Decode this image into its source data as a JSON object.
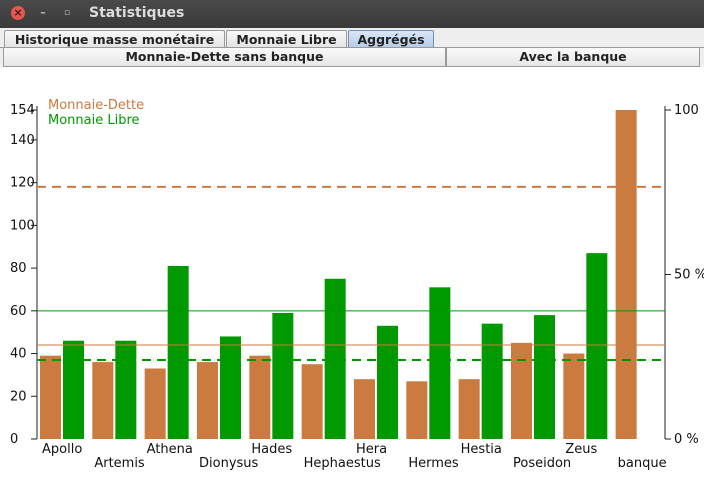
{
  "window": {
    "title": "Statistiques",
    "close_icon": "close-icon",
    "minimize_icon": "minimize-icon",
    "maximize_icon": "maximize-icon"
  },
  "tabs": [
    {
      "label": "Historique masse monétaire",
      "selected": false
    },
    {
      "label": "Monnaie Libre",
      "selected": false
    },
    {
      "label": "Aggrégés",
      "selected": true
    }
  ],
  "subtabs": [
    {
      "label": "Monnaie-Dette sans banque"
    },
    {
      "label": "Avec la banque"
    }
  ],
  "chart_data": {
    "type": "bar",
    "categories": [
      "Apollo",
      "Artemis",
      "Athena",
      "Dionysus",
      "Hades",
      "Hephaestus",
      "Hera",
      "Hermes",
      "Hestia",
      "Poseidon",
      "Zeus",
      "banque"
    ],
    "series": [
      {
        "name": "Monnaie-Dette",
        "color": "#cb7a40",
        "values": [
          39,
          36,
          33,
          36,
          39,
          35,
          28,
          27,
          28,
          45,
          40,
          154
        ]
      },
      {
        "name": "Monnaie Libre",
        "color": "#009900",
        "values": [
          46,
          46,
          81,
          48,
          59,
          75,
          53,
          71,
          54,
          58,
          87,
          null
        ]
      }
    ],
    "reference_lines": [
      {
        "series": "Monnaie-Dette",
        "style": "dashed",
        "value": 118,
        "color": "#cb7a40"
      },
      {
        "series": "Monnaie-Dette",
        "style": "solid",
        "value": 44,
        "color": "#cb7a40"
      },
      {
        "series": "Monnaie Libre",
        "style": "solid",
        "value": 60,
        "color": "#009900"
      },
      {
        "series": "Monnaie Libre",
        "style": "dashed",
        "value": 37,
        "color": "#009900"
      }
    ],
    "y_left": {
      "min": 0,
      "max": 154,
      "ticks": [
        0,
        20,
        40,
        60,
        80,
        100,
        120,
        140,
        154
      ]
    },
    "y_right": {
      "ticks": [
        {
          "value": 0,
          "label": "0 %"
        },
        {
          "value": 77,
          "label": "50 %"
        },
        {
          "value": 154,
          "label": "100"
        }
      ]
    },
    "legend": {
      "placement": "top-left",
      "entries": [
        {
          "label": "Monnaie-Dette",
          "color": "#cb7a40"
        },
        {
          "label": "Monnaie Libre",
          "color": "#009900"
        }
      ]
    },
    "grid": false
  }
}
